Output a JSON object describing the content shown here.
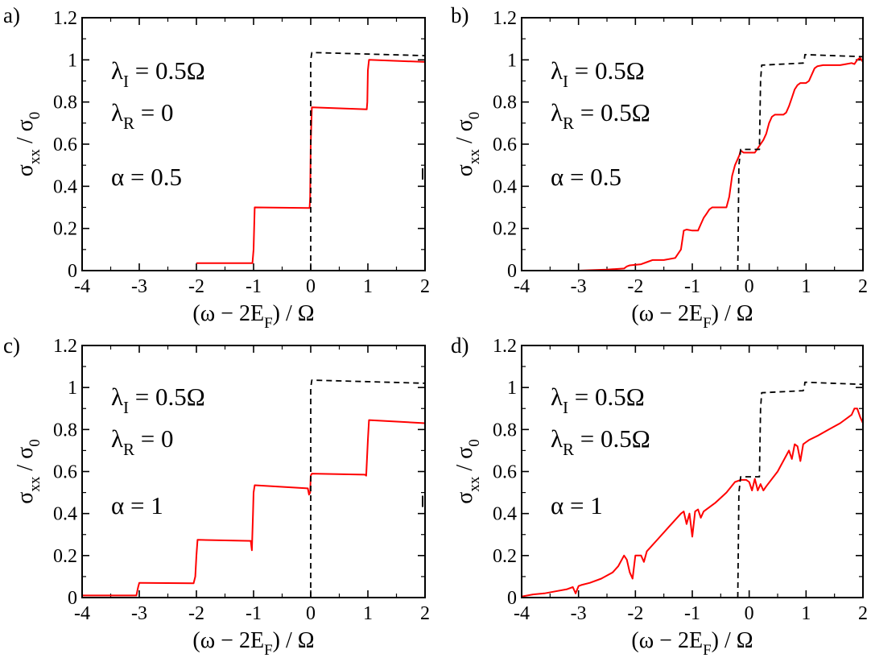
{
  "chart_data": [
    {
      "type": "line",
      "panel_label": "a)",
      "xlabel": {
        "main": "(ω − 2E",
        "sub": "F",
        "tail": ") / Ω"
      },
      "ylabel": {
        "main": "σ",
        "sub": "xx",
        "tail": " / σ",
        "sub2": "0"
      },
      "xlim": [
        -4,
        2
      ],
      "ylim": [
        0,
        1.2
      ],
      "xticks": [
        "-4",
        "-3",
        "-2",
        "-1",
        "0",
        "1",
        "2"
      ],
      "yticks": [
        "0",
        "0.2",
        "0.4",
        "0.6",
        "0.8",
        "1",
        "1.2"
      ],
      "annotations": [
        {
          "main": "λ",
          "sub": "I",
          "tail": " = 0.5Ω"
        },
        {
          "main": "λ",
          "sub": "R",
          "tail": " = 0"
        },
        {
          "main": "α = 0.5",
          "sub": "",
          "tail": ""
        }
      ],
      "series": [
        {
          "name": "red",
          "color": "#ff0000",
          "style": "solid",
          "x": [
            -2.0,
            -1.99,
            -1.02,
            -1.0,
            -0.98,
            -0.02,
            -0.01,
            0.0,
            0.02,
            0.98,
            0.99,
            1.0,
            1.02,
            2.0
          ],
          "y": [
            0.035,
            0.035,
            0.035,
            0.1,
            0.3,
            0.297,
            0.35,
            0.6,
            0.775,
            0.765,
            0.8,
            0.95,
            1.0,
            0.99
          ]
        },
        {
          "name": "black-dashed",
          "color": "#000000",
          "style": "dashed",
          "x": [
            0.0,
            0.0,
            0.02,
            2.0
          ],
          "y": [
            0.0,
            1.0,
            1.035,
            1.02
          ]
        }
      ]
    },
    {
      "type": "line",
      "panel_label": "b)",
      "xlabel": {
        "main": "(ω − 2E",
        "sub": "F",
        "tail": ") / Ω"
      },
      "ylabel": {
        "main": "σ",
        "sub": "xx",
        "tail": " / σ",
        "sub2": "0"
      },
      "xlim": [
        -4,
        2
      ],
      "ylim": [
        0,
        1.2
      ],
      "xticks": [
        "-4",
        "-3",
        "-2",
        "-1",
        "0",
        "1",
        "2"
      ],
      "yticks": [
        "0",
        "0.2",
        "0.4",
        "0.6",
        "0.8",
        "1",
        "1.2"
      ],
      "annotations": [
        {
          "main": "λ",
          "sub": "I",
          "tail": " = 0.5Ω"
        },
        {
          "main": "λ",
          "sub": "R",
          "tail": " = 0.5Ω"
        },
        {
          "main": "α = 0.5",
          "sub": "",
          "tail": ""
        }
      ],
      "series": [
        {
          "name": "red",
          "color": "#ff0000",
          "style": "solid",
          "x": [
            -3.0,
            -2.5,
            -2.2,
            -2.15,
            -2.1,
            -1.9,
            -1.8,
            -1.7,
            -1.5,
            -1.3,
            -1.2,
            -1.15,
            -1.1,
            -1.0,
            -0.9,
            -0.85,
            -0.8,
            -0.75,
            -0.7,
            -0.65,
            -0.6,
            -0.4,
            -0.35,
            -0.3,
            -0.25,
            -0.2,
            -0.17,
            -0.15,
            -0.1,
            0.0,
            0.1,
            0.15,
            0.2,
            0.25,
            0.3,
            0.35,
            0.4,
            0.45,
            0.5,
            0.6,
            0.65,
            0.7,
            0.75,
            0.8,
            0.85,
            0.9,
            0.95,
            1.0,
            1.05,
            1.1,
            1.15,
            1.2,
            1.3,
            1.4,
            1.5,
            1.6,
            1.7,
            1.8,
            1.85,
            1.9,
            1.95,
            2.0
          ],
          "y": [
            0.0,
            0.005,
            0.01,
            0.02,
            0.025,
            0.03,
            0.04,
            0.05,
            0.05,
            0.06,
            0.1,
            0.19,
            0.195,
            0.19,
            0.19,
            0.22,
            0.25,
            0.27,
            0.29,
            0.3,
            0.3,
            0.3,
            0.35,
            0.45,
            0.5,
            0.53,
            0.55,
            0.57,
            0.56,
            0.56,
            0.56,
            0.58,
            0.6,
            0.62,
            0.65,
            0.7,
            0.73,
            0.74,
            0.74,
            0.74,
            0.75,
            0.78,
            0.82,
            0.86,
            0.88,
            0.89,
            0.89,
            0.89,
            0.9,
            0.93,
            0.96,
            0.97,
            0.975,
            0.975,
            0.975,
            0.975,
            0.98,
            0.985,
            0.98,
            1.0,
            1.01,
            0.99
          ]
        },
        {
          "name": "black-dashed",
          "color": "#000000",
          "style": "dashed",
          "x": [
            -0.2,
            -0.18,
            -0.15,
            0.18,
            0.2,
            0.22,
            0.95,
            0.97,
            0.98,
            2.0
          ],
          "y": [
            0.0,
            0.5,
            0.575,
            0.575,
            0.9,
            0.975,
            0.985,
            1.0,
            1.025,
            1.015
          ]
        }
      ]
    },
    {
      "type": "line",
      "panel_label": "c)",
      "xlabel": {
        "main": "(ω − 2E",
        "sub": "F",
        "tail": ") / Ω"
      },
      "ylabel": {
        "main": "σ",
        "sub": "xx",
        "tail": " / σ",
        "sub2": "0"
      },
      "xlim": [
        -4,
        2
      ],
      "ylim": [
        0,
        1.2
      ],
      "xticks": [
        "-4",
        "-3",
        "-2",
        "-1",
        "0",
        "1",
        "2"
      ],
      "yticks": [
        "0",
        "0.2",
        "0.4",
        "0.6",
        "0.8",
        "1",
        "1.2"
      ],
      "annotations": [
        {
          "main": "λ",
          "sub": "I",
          "tail": " = 0.5Ω"
        },
        {
          "main": "λ",
          "sub": "R",
          "tail": " = 0"
        },
        {
          "main": "α = 1",
          "sub": "",
          "tail": ""
        }
      ],
      "series": [
        {
          "name": "red",
          "color": "#ff0000",
          "style": "solid",
          "x": [
            -4.0,
            -3.05,
            -3.02,
            -3.0,
            -2.98,
            -2.05,
            -2.02,
            -2.0,
            -1.98,
            -1.05,
            -1.03,
            -1.01,
            -1.0,
            -0.98,
            -0.05,
            -0.03,
            -0.01,
            0.0,
            0.02,
            0.95,
            0.97,
            1.0,
            1.02,
            2.0
          ],
          "y": [
            0.01,
            0.01,
            0.05,
            0.07,
            0.07,
            0.068,
            0.1,
            0.2,
            0.275,
            0.27,
            0.225,
            0.4,
            0.5,
            0.535,
            0.52,
            0.49,
            0.5,
            0.58,
            0.59,
            0.585,
            0.58,
            0.75,
            0.845,
            0.83
          ]
        },
        {
          "name": "black-dashed",
          "color": "#000000",
          "style": "dashed",
          "x": [
            0.0,
            0.0,
            0.02,
            2.0
          ],
          "y": [
            0.0,
            1.0,
            1.035,
            1.02
          ]
        }
      ]
    },
    {
      "type": "line",
      "panel_label": "d)",
      "xlabel": {
        "main": "(ω − 2E",
        "sub": "F",
        "tail": ") / Ω"
      },
      "ylabel": {
        "main": "σ",
        "sub": "xx",
        "tail": " / σ",
        "sub2": "0"
      },
      "xlim": [
        -4,
        2
      ],
      "ylim": [
        0,
        1.2
      ],
      "xticks": [
        "-4",
        "-3",
        "-2",
        "-1",
        "0",
        "1",
        "2"
      ],
      "yticks": [
        "0",
        "0.2",
        "0.4",
        "0.6",
        "0.8",
        "1",
        "1.2"
      ],
      "annotations": [
        {
          "main": "λ",
          "sub": "I",
          "tail": " = 0.5Ω"
        },
        {
          "main": "λ",
          "sub": "R",
          "tail": " = 0.5Ω"
        },
        {
          "main": "α = 1",
          "sub": "",
          "tail": ""
        }
      ],
      "series": [
        {
          "name": "red",
          "color": "#ff0000",
          "style": "solid",
          "x": [
            -4.0,
            -3.8,
            -3.6,
            -3.4,
            -3.2,
            -3.1,
            -3.05,
            -3.0,
            -2.95,
            -2.8,
            -2.6,
            -2.4,
            -2.3,
            -2.2,
            -2.15,
            -2.1,
            -2.05,
            -2.0,
            -1.95,
            -1.9,
            -1.85,
            -1.8,
            -1.6,
            -1.4,
            -1.2,
            -1.15,
            -1.1,
            -1.05,
            -1.0,
            -0.95,
            -0.9,
            -0.85,
            -0.8,
            -0.6,
            -0.4,
            -0.25,
            -0.15,
            -0.1,
            -0.05,
            0.0,
            0.05,
            0.1,
            0.15,
            0.2,
            0.25,
            0.3,
            0.5,
            0.7,
            0.75,
            0.8,
            0.85,
            0.9,
            0.95,
            1.0,
            1.05,
            1.2,
            1.4,
            1.6,
            1.8,
            1.85,
            1.9,
            1.95,
            2.0
          ],
          "y": [
            0.005,
            0.015,
            0.02,
            0.03,
            0.04,
            0.05,
            0.02,
            0.055,
            0.06,
            0.07,
            0.09,
            0.12,
            0.15,
            0.2,
            0.18,
            0.12,
            0.09,
            0.2,
            0.2,
            0.2,
            0.17,
            0.22,
            0.28,
            0.34,
            0.4,
            0.41,
            0.35,
            0.4,
            0.29,
            0.41,
            0.42,
            0.38,
            0.41,
            0.45,
            0.5,
            0.55,
            0.56,
            0.56,
            0.56,
            0.55,
            0.51,
            0.565,
            0.51,
            0.54,
            0.51,
            0.53,
            0.6,
            0.7,
            0.66,
            0.73,
            0.72,
            0.65,
            0.73,
            0.74,
            0.75,
            0.77,
            0.8,
            0.83,
            0.87,
            0.9,
            0.9,
            0.86,
            0.83
          ]
        },
        {
          "name": "black-dashed",
          "color": "#000000",
          "style": "dashed",
          "x": [
            -0.2,
            -0.18,
            -0.15,
            0.18,
            0.2,
            0.22,
            0.95,
            0.97,
            0.98,
            2.0
          ],
          "y": [
            0.0,
            0.5,
            0.575,
            0.575,
            0.9,
            0.975,
            0.985,
            1.0,
            1.025,
            1.015
          ]
        }
      ]
    }
  ]
}
